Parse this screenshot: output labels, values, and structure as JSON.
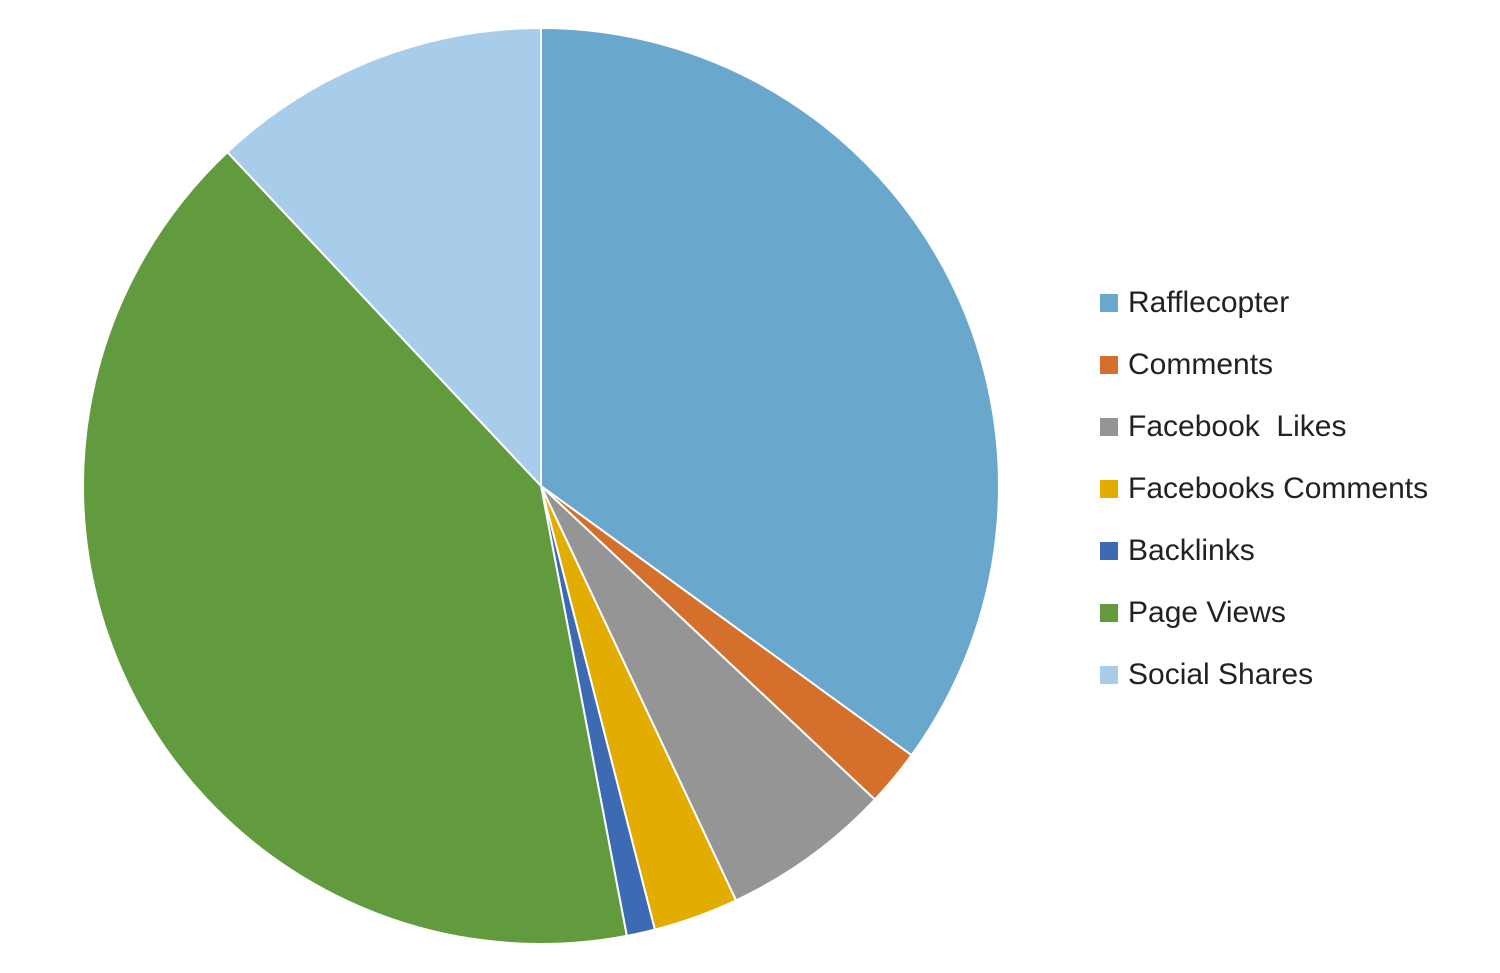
{
  "chart_data": {
    "type": "pie",
    "categories": [
      "Rafflecopter",
      "Comments",
      "Facebook  Likes",
      "Facebooks Comments",
      "Backlinks",
      "Page Views",
      "Social Shares"
    ],
    "values": [
      35,
      2,
      6,
      3,
      1,
      41,
      12
    ],
    "colors": [
      "#6aa7cc",
      "#d4702c",
      "#959595",
      "#e2ac00",
      "#3d6bb3",
      "#629a3e",
      "#a7cdeb"
    ],
    "legend": "right"
  }
}
